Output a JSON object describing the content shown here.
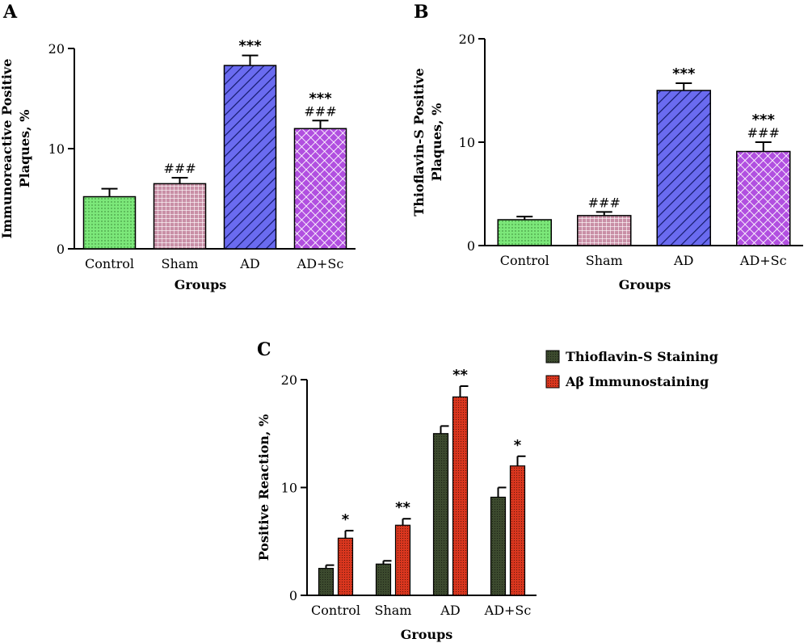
{
  "chart_data": [
    {
      "panel": "A",
      "type": "bar",
      "categories": [
        "Control",
        "Sham",
        "AD",
        "AD+Sc"
      ],
      "values": [
        5.2,
        6.5,
        18.3,
        12.0
      ],
      "errors": [
        0.8,
        0.6,
        1.0,
        0.8
      ],
      "bar_colors": [
        "#7ce87a",
        "#c98fa6",
        "#6a6bf0",
        "#b14fe0"
      ],
      "annotations": [
        [
          "",
          ""
        ],
        [
          "###",
          ""
        ],
        [
          "***",
          ""
        ],
        [
          "***",
          "###"
        ]
      ],
      "title": "",
      "xlabel": "Groups",
      "ylabel": [
        "Immunoreactive Positive",
        "Plaques, %"
      ],
      "ylim": [
        0,
        20
      ],
      "yticks": [
        "0",
        "10",
        "20"
      ],
      "grid": false
    },
    {
      "panel": "B",
      "type": "bar",
      "categories": [
        "Control",
        "Sham",
        "AD",
        "AD+Sc"
      ],
      "values": [
        2.5,
        2.9,
        15.0,
        9.1
      ],
      "errors": [
        0.3,
        0.35,
        0.7,
        0.9
      ],
      "bar_colors": [
        "#7ce87a",
        "#c98fa6",
        "#6a6bf0",
        "#b14fe0"
      ],
      "annotations": [
        [
          "",
          ""
        ],
        [
          "###",
          ""
        ],
        [
          "***",
          ""
        ],
        [
          "***",
          "###"
        ]
      ],
      "title": "",
      "xlabel": "Groups",
      "ylabel": [
        "Thioflavin-S Positive",
        "Plaques, %"
      ],
      "ylim": [
        0,
        20
      ],
      "yticks": [
        "0",
        "10",
        "20"
      ],
      "grid": false
    },
    {
      "panel": "C",
      "type": "bar",
      "categories": [
        "Control",
        "Sham",
        "AD",
        "AD+Sc"
      ],
      "series": [
        {
          "name": "Thioflavin-S Staining",
          "values": [
            2.5,
            2.9,
            15.0,
            9.1
          ],
          "errors": [
            0.3,
            0.3,
            0.7,
            0.9
          ],
          "color": "#3c4a2e"
        },
        {
          "name": "Aβ Immunostaining",
          "values": [
            5.3,
            6.5,
            18.4,
            12.0
          ],
          "errors": [
            0.7,
            0.6,
            1.0,
            0.9
          ],
          "color": "#d9361e"
        }
      ],
      "annotations": [
        "*",
        "**",
        "**",
        "*"
      ],
      "title": "",
      "xlabel": "Groups",
      "ylabel": [
        "Positive Reaction, %"
      ],
      "ylim": [
        0,
        20
      ],
      "yticks": [
        "0",
        "10",
        "20"
      ],
      "legend": "top-right",
      "grid": false
    }
  ]
}
